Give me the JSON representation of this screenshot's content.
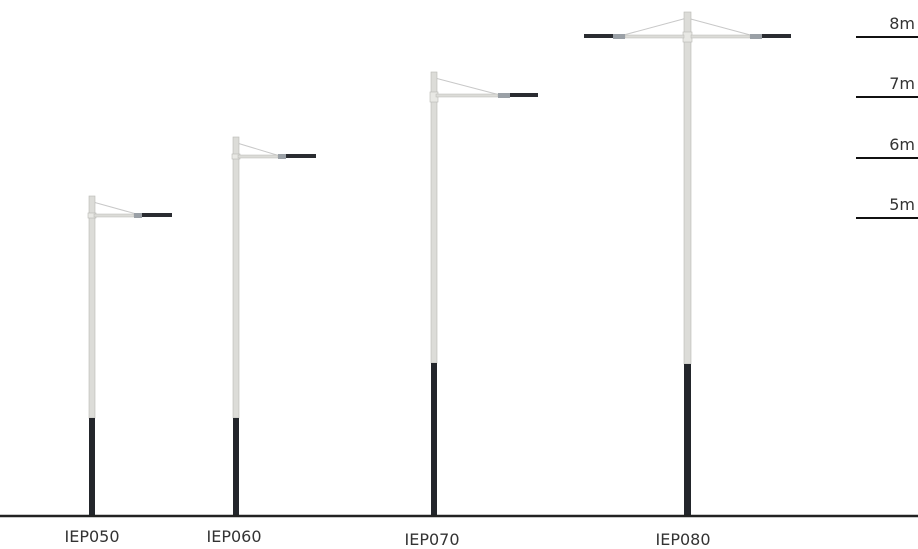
{
  "heights": [
    {
      "label": "8m"
    },
    {
      "label": "7m"
    },
    {
      "label": "6m"
    },
    {
      "label": "5m"
    }
  ],
  "poles": [
    {
      "label": "IEP050",
      "type": "single-arm"
    },
    {
      "label": "IEP060",
      "type": "single-arm"
    },
    {
      "label": "IEP070",
      "type": "single-arm"
    },
    {
      "label": "IEP080",
      "type": "double-arm"
    }
  ],
  "colors": {
    "pole": "#dcdcd8",
    "pole_edge": "#b8b8b4",
    "base": "#23262b",
    "ground": "#222222",
    "scale_line": "#111111",
    "text": "#333333",
    "guy_wire": "#c8c8c8",
    "lamp_dark": "#2a2c31",
    "lamp_light": "#9aa0a6"
  }
}
